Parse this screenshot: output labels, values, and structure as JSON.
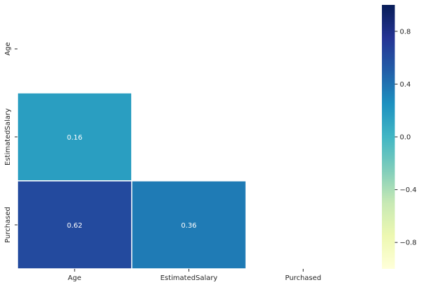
{
  "chart_data": {
    "type": "heatmap",
    "title": "",
    "xlabel": "",
    "ylabel": "",
    "x_categories": [
      "Age",
      "EstimatedSalary",
      "Purchased"
    ],
    "y_categories": [
      "Age",
      "EstimatedSalary",
      "Purchased"
    ],
    "mask": "upper-triangle-including-diagonal",
    "cells": [
      {
        "row": 1,
        "col": 0,
        "value": 0.16,
        "label": "0.16"
      },
      {
        "row": 2,
        "col": 0,
        "value": 0.62,
        "label": "0.62"
      },
      {
        "row": 2,
        "col": 1,
        "value": 0.36,
        "label": "0.36"
      }
    ],
    "colormap": "YlGnBu",
    "value_range": [
      -1,
      1
    ],
    "colorbar": {
      "ticks": [
        0.8,
        0.4,
        0.0,
        -0.4,
        -0.8
      ],
      "tick_labels": [
        "0.8",
        "0.4",
        "0.0",
        "−0.4",
        "−0.8"
      ]
    },
    "annotation_color": "#ffffff",
    "cell_border_color": "#ffffff"
  }
}
